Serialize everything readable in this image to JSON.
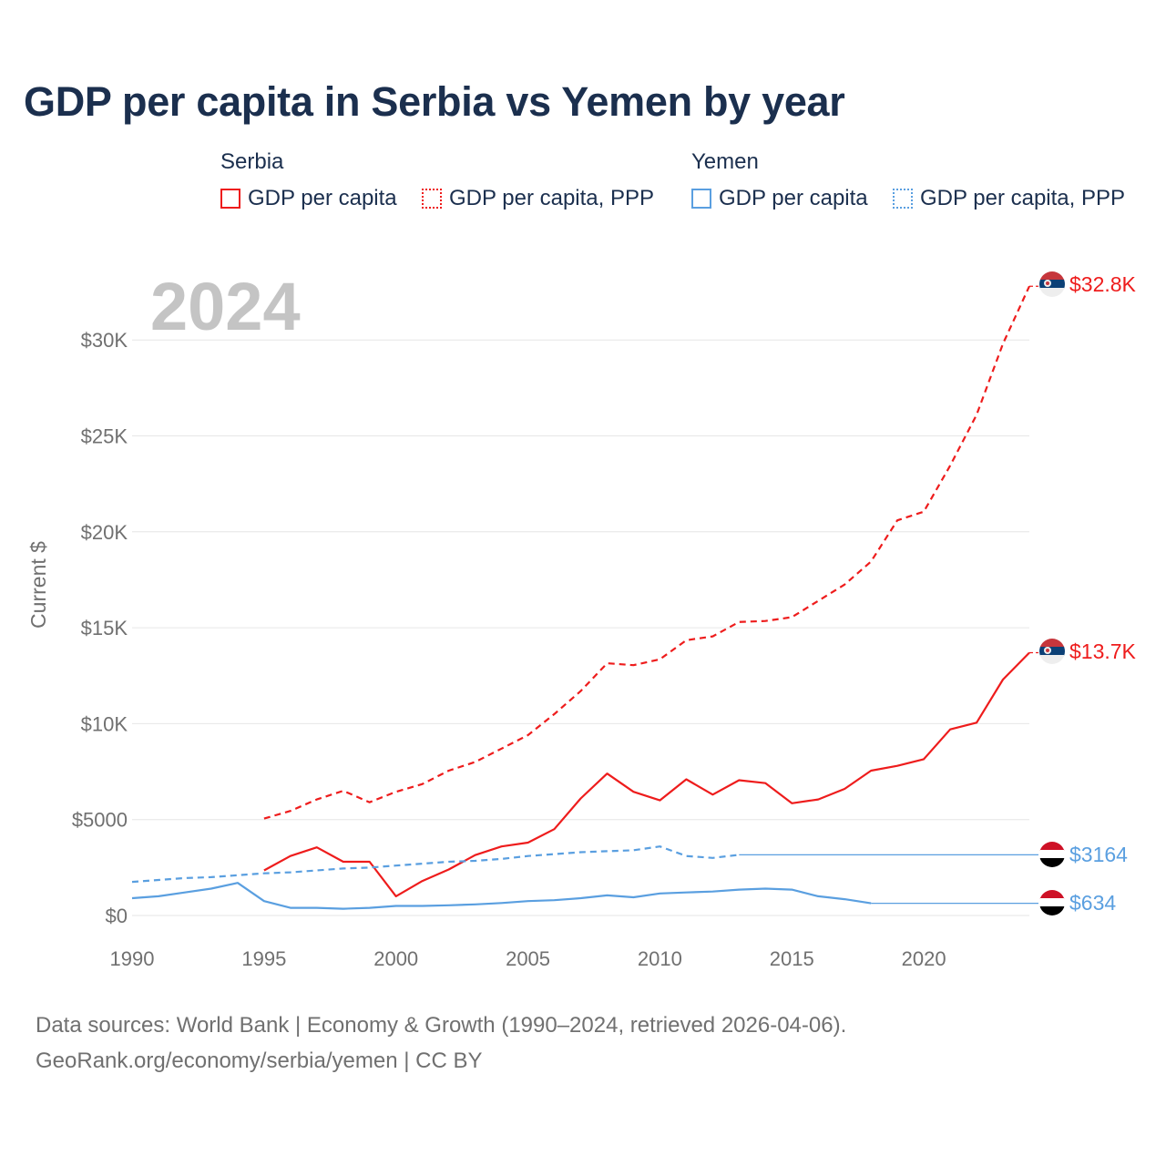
{
  "title": "GDP per capita in Serbia vs Yemen by year",
  "legend": {
    "groups": [
      {
        "name": "Serbia",
        "color": "#ee1c1c",
        "items": [
          "GDP per capita",
          "GDP per capita, PPP"
        ]
      },
      {
        "name": "Yemen",
        "color": "#5a9fe0",
        "items": [
          "GDP per capita",
          "GDP per capita, PPP"
        ]
      }
    ]
  },
  "footer": {
    "line1": "Data sources: World Bank | Economy & Growth (1990–2024, retrieved 2026-04-06).",
    "line2": "GeoRank.org/economy/serbia/yemen | CC BY"
  },
  "chart_data": {
    "type": "line",
    "title": "GDP per capita in Serbia vs Yemen by year",
    "current_year_label": "2024",
    "ylabel": "Current $",
    "xlabel": "",
    "xlim": [
      1990,
      2024
    ],
    "ylim": [
      0,
      33000
    ],
    "grid": true,
    "x_ticks": [
      1990,
      1995,
      2000,
      2005,
      2010,
      2015,
      2020
    ],
    "x_tick_labels": [
      "1990",
      "1995",
      "2000",
      "2005",
      "2010",
      "2015",
      "2020"
    ],
    "y_ticks": [
      0,
      5000,
      10000,
      15000,
      20000,
      25000,
      30000
    ],
    "y_tick_labels": [
      "$0",
      "$5000",
      "$10K",
      "$15K",
      "$20K",
      "$25K",
      "$30K"
    ],
    "series": [
      {
        "name": "Serbia GDP per capita, PPP",
        "country": "Serbia",
        "color": "#ee1c1c",
        "style": "dashed",
        "end_label": "$32.8K",
        "points": [
          [
            1995,
            5050
          ],
          [
            1996,
            5450
          ],
          [
            1997,
            6050
          ],
          [
            1998,
            6500
          ],
          [
            1999,
            5900
          ],
          [
            2000,
            6450
          ],
          [
            2001,
            6850
          ],
          [
            2002,
            7550
          ],
          [
            2003,
            8000
          ],
          [
            2004,
            8700
          ],
          [
            2005,
            9400
          ],
          [
            2006,
            10500
          ],
          [
            2007,
            11700
          ],
          [
            2008,
            13150
          ],
          [
            2009,
            13050
          ],
          [
            2010,
            13350
          ],
          [
            2011,
            14350
          ],
          [
            2012,
            14550
          ],
          [
            2013,
            15300
          ],
          [
            2014,
            15350
          ],
          [
            2015,
            15550
          ],
          [
            2016,
            16400
          ],
          [
            2017,
            17250
          ],
          [
            2018,
            18450
          ],
          [
            2019,
            20600
          ],
          [
            2020,
            21050
          ],
          [
            2021,
            23450
          ],
          [
            2022,
            26100
          ],
          [
            2023,
            29800
          ],
          [
            2024,
            32800
          ]
        ]
      },
      {
        "name": "Serbia GDP per capita",
        "country": "Serbia",
        "color": "#ee1c1c",
        "style": "solid",
        "end_label": "$13.7K",
        "points": [
          [
            1995,
            2350
          ],
          [
            1996,
            3100
          ],
          [
            1997,
            3550
          ],
          [
            1998,
            2800
          ],
          [
            1999,
            2800
          ],
          [
            2000,
            1000
          ],
          [
            2001,
            1800
          ],
          [
            2002,
            2400
          ],
          [
            2003,
            3150
          ],
          [
            2004,
            3600
          ],
          [
            2005,
            3800
          ],
          [
            2006,
            4500
          ],
          [
            2007,
            6100
          ],
          [
            2008,
            7400
          ],
          [
            2009,
            6450
          ],
          [
            2010,
            6000
          ],
          [
            2011,
            7100
          ],
          [
            2012,
            6300
          ],
          [
            2013,
            7050
          ],
          [
            2014,
            6900
          ],
          [
            2015,
            5850
          ],
          [
            2016,
            6050
          ],
          [
            2017,
            6600
          ],
          [
            2018,
            7550
          ],
          [
            2019,
            7800
          ],
          [
            2020,
            8150
          ],
          [
            2021,
            9700
          ],
          [
            2022,
            10050
          ],
          [
            2023,
            12300
          ],
          [
            2024,
            13700
          ]
        ]
      },
      {
        "name": "Yemen GDP per capita, PPP",
        "country": "Yemen",
        "color": "#5a9fe0",
        "style": "dashed",
        "end_label": "$3164",
        "points": [
          [
            1990,
            1750
          ],
          [
            1991,
            1850
          ],
          [
            1992,
            1950
          ],
          [
            1993,
            2000
          ],
          [
            1994,
            2100
          ],
          [
            1995,
            2200
          ],
          [
            1996,
            2250
          ],
          [
            1997,
            2350
          ],
          [
            1998,
            2450
          ],
          [
            1999,
            2500
          ],
          [
            2000,
            2600
          ],
          [
            2001,
            2700
          ],
          [
            2002,
            2800
          ],
          [
            2003,
            2850
          ],
          [
            2004,
            2950
          ],
          [
            2005,
            3100
          ],
          [
            2006,
            3200
          ],
          [
            2007,
            3300
          ],
          [
            2008,
            3350
          ],
          [
            2009,
            3400
          ],
          [
            2010,
            3600
          ],
          [
            2011,
            3100
          ],
          [
            2012,
            3000
          ],
          [
            2013,
            3164
          ]
        ],
        "carry_forward_to": 2024
      },
      {
        "name": "Yemen GDP per capita",
        "country": "Yemen",
        "color": "#5a9fe0",
        "style": "solid",
        "end_label": "$634",
        "points": [
          [
            1990,
            900
          ],
          [
            1991,
            1000
          ],
          [
            1992,
            1200
          ],
          [
            1993,
            1400
          ],
          [
            1994,
            1700
          ],
          [
            1995,
            750
          ],
          [
            1996,
            400
          ],
          [
            1997,
            400
          ],
          [
            1998,
            350
          ],
          [
            1999,
            400
          ],
          [
            2000,
            500
          ],
          [
            2001,
            500
          ],
          [
            2002,
            530
          ],
          [
            2003,
            580
          ],
          [
            2004,
            650
          ],
          [
            2005,
            750
          ],
          [
            2006,
            800
          ],
          [
            2007,
            900
          ],
          [
            2008,
            1050
          ],
          [
            2009,
            950
          ],
          [
            2010,
            1150
          ],
          [
            2011,
            1200
          ],
          [
            2012,
            1250
          ],
          [
            2013,
            1350
          ],
          [
            2014,
            1400
          ],
          [
            2015,
            1350
          ],
          [
            2016,
            1000
          ],
          [
            2017,
            850
          ],
          [
            2018,
            634
          ]
        ],
        "carry_forward_to": 2024
      }
    ]
  }
}
